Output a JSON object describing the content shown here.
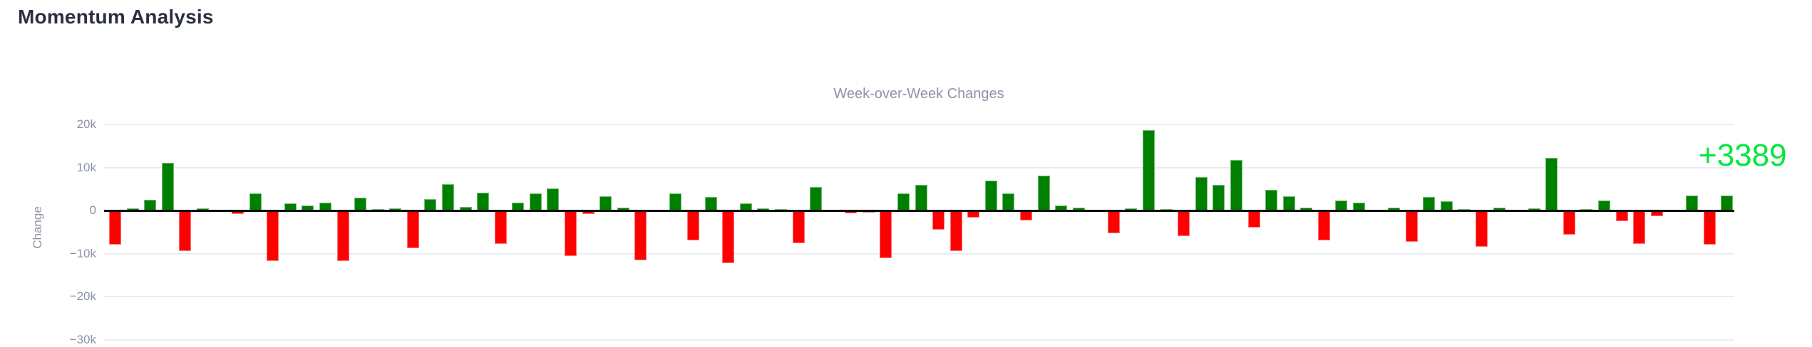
{
  "page_title": "Momentum Analysis",
  "colors": {
    "title_text": "#2b3040",
    "muted_text": "#8a92a3",
    "gridline": "#e8edf3",
    "zero_line": "#0a0a0a",
    "positive_bar": "#008000",
    "negative_bar": "#ff0000",
    "annotation_green": "#00e63e",
    "background": "#ffffff"
  },
  "chart_data": {
    "type": "bar",
    "title": "Week-over-Week Changes",
    "xlabel": "",
    "ylabel": "Change",
    "legend": null,
    "grid": true,
    "y_ticks": [
      {
        "label": "20k",
        "value": 20000
      },
      {
        "label": "10k",
        "value": 10000
      },
      {
        "label": "0",
        "value": 0
      },
      {
        "label": "−10k",
        "value": -10000
      },
      {
        "label": "−20k",
        "value": -20000
      },
      {
        "label": "−30k",
        "value": -30000
      }
    ],
    "ylim_visible_top": 22000,
    "x_tick_labels": [],
    "values": [
      -7900,
      500,
      2500,
      11000,
      -9400,
      500,
      -400,
      -800,
      3900,
      -11700,
      1600,
      1200,
      1800,
      -11800,
      2900,
      400,
      500,
      -8700,
      2700,
      6100,
      900,
      4200,
      -7700,
      1900,
      3900,
      5100,
      -10500,
      -800,
      3300,
      600,
      -11600,
      -200,
      3900,
      -7000,
      3200,
      -12200,
      1700,
      500,
      400,
      -7600,
      5500,
      -300,
      -600,
      -500,
      -11100,
      4000,
      5900,
      -4500,
      -9500,
      -1700,
      6900,
      4000,
      -2300,
      8100,
      1200,
      600,
      200,
      -5300,
      500,
      18600,
      400,
      -6000,
      7800,
      6000,
      11800,
      -4000,
      4800,
      3300,
      600,
      -6900,
      2300,
      1800,
      100,
      600,
      -7300,
      3200,
      2200,
      400,
      -8500,
      700,
      100,
      500,
      12200,
      -5700,
      400,
      2300,
      -2500,
      -7700,
      -1400,
      -100,
      3400,
      -7900,
      3389
    ],
    "annotation": {
      "text": "+3389",
      "color": "#00e63e"
    }
  }
}
